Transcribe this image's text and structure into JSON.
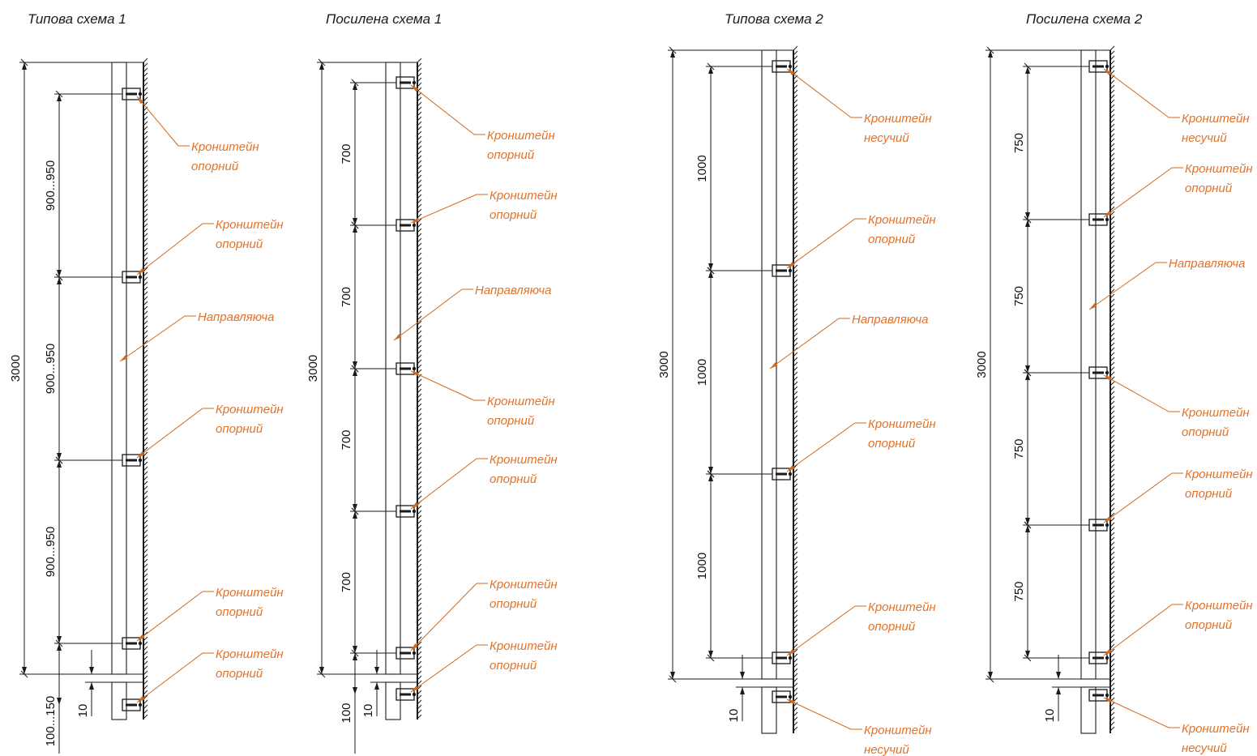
{
  "colors": {
    "line": "#1a1a1a",
    "label": "#e0732a",
    "leader": "#d2691e"
  },
  "schemes": [
    {
      "title": "Типова схема 1",
      "total": "3000",
      "segments": [
        "900...950",
        "900...950",
        "900...950"
      ],
      "bottom_gap": "100...150",
      "joint_gap": "10",
      "labels": {
        "b1": [
          "Кронштейн",
          "опорний"
        ],
        "b2": [
          "Кронштейн",
          "опорний"
        ],
        "guide": "Направляюча",
        "b3": [
          "Кронштейн",
          "опорний"
        ],
        "b4": [
          "Кронштейн",
          "опорний"
        ],
        "b5": [
          "Кронштейн",
          "опорний"
        ]
      }
    },
    {
      "title": "Посилена схема 1",
      "total": "3000",
      "segments": [
        "700",
        "700",
        "700",
        "700"
      ],
      "bottom_gap": "100",
      "joint_gap": "10",
      "labels": {
        "b1": [
          "Кронштейн",
          "опорний"
        ],
        "b2": [
          "Кронштейн",
          "опорний"
        ],
        "guide": "Направляюча",
        "b3": [
          "Кронштейн",
          "опорний"
        ],
        "b4": [
          "Кронштейн",
          "опорний"
        ],
        "b5": [
          "Кронштейн",
          "опорний"
        ],
        "b6": [
          "Кронштейн",
          "опорний"
        ]
      }
    },
    {
      "title": "Типова схема 2",
      "total": "3000",
      "segments": [
        "1000",
        "1000",
        "1000"
      ],
      "joint_gap": "10",
      "labels": {
        "b1": [
          "Кронштейн",
          "несучий"
        ],
        "b2": [
          "Кронштейн",
          "опорний"
        ],
        "guide": "Направляюча",
        "b3": [
          "Кронштейн",
          "опорний"
        ],
        "b4": [
          "Кронштейн",
          "опорний"
        ],
        "b5": [
          "Кронштейн",
          "несучий"
        ]
      }
    },
    {
      "title": "Посилена схема 2",
      "total": "3000",
      "segments": [
        "750",
        "750",
        "750",
        "750"
      ],
      "joint_gap": "10",
      "labels": {
        "b1": [
          "Кронштейн",
          "несучий"
        ],
        "b2": [
          "Кронштейн",
          "опорний"
        ],
        "guide": "Направляюча",
        "b3": [
          "Кронштейн",
          "опорний"
        ],
        "b4": [
          "Кронштейн",
          "опорний"
        ],
        "b5": [
          "Кронштейн",
          "опорний"
        ],
        "b6": [
          "Кронштейн",
          "несучий"
        ]
      }
    }
  ]
}
